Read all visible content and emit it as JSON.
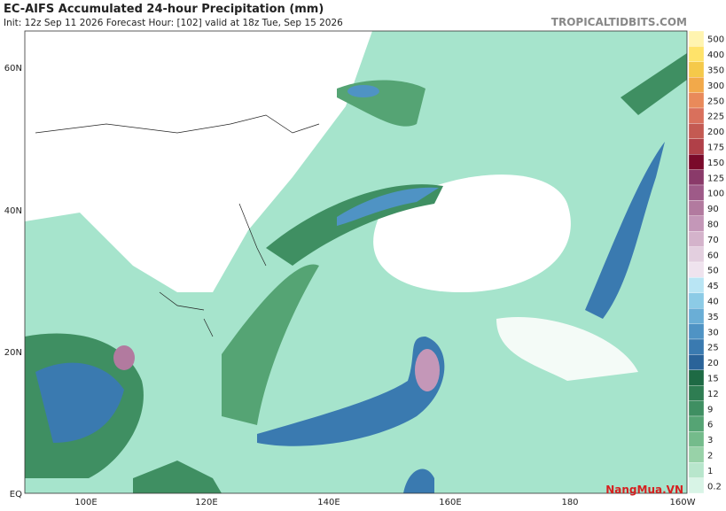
{
  "header": {
    "title": "EC-AIFS Accumulated 24-hour Precipitation (mm)",
    "subtitle": "Init: 12z Sep 11 2026   Forecast Hour: [102]   valid at 18z Tue, Sep 15 2026",
    "source": "TROPICALTIDBITS.COM"
  },
  "map": {
    "lat_labels": [
      "60N",
      "40N",
      "20N",
      "EQ"
    ],
    "lon_labels": [
      "100E",
      "120E",
      "140E",
      "160E",
      "180",
      "160W"
    ]
  },
  "colorbar": {
    "levels": [
      500,
      400,
      350,
      300,
      250,
      225,
      200,
      175,
      150,
      125,
      100,
      90,
      80,
      70,
      60,
      50,
      45,
      40,
      35,
      30,
      25,
      20,
      15,
      12,
      9,
      6,
      3,
      2,
      1,
      0.2
    ],
    "colors": [
      "#fff4b0",
      "#ffe36a",
      "#f5c94a",
      "#f2a94a",
      "#e98a5a",
      "#d9705c",
      "#c45a52",
      "#b04048",
      "#7a0a2a",
      "#8a3a6a",
      "#9e5a88",
      "#b27a9f",
      "#c497b8",
      "#d4b3cb",
      "#e3cfdf",
      "#efe3ee",
      "#b9e5f4",
      "#8ccbe6",
      "#6aaed6",
      "#4f93c4",
      "#3a7ab0",
      "#2a6399",
      "#1e6a44",
      "#2e7d52",
      "#3f8f62",
      "#55a474",
      "#74bb8b",
      "#98d2a8",
      "#b8e6cc",
      "#d8f4e6"
    ]
  },
  "watermark": "NangMua.VN"
}
